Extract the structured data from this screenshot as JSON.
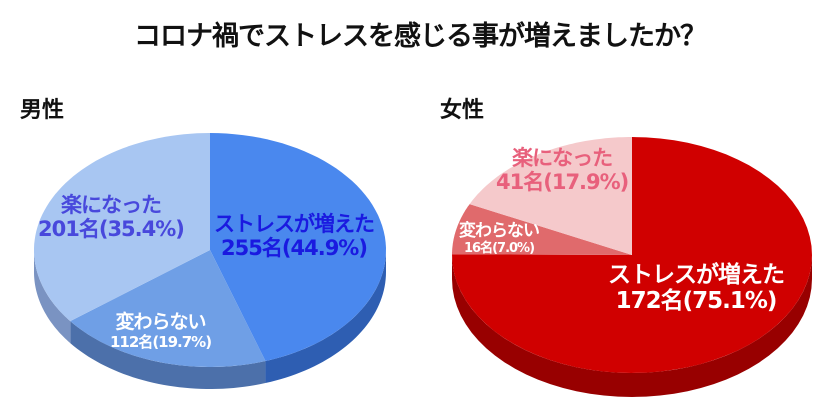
{
  "title": "コロナ禍でストレスを感じる事が増えましたか？",
  "chart_data": [
    {
      "type": "pie",
      "title": "男性",
      "slices": [
        {
          "label": "ストレスが増えた",
          "count": "255名",
          "percent": "(44.9%)",
          "value": 44.9,
          "color": "#4a88ee",
          "side": "#2e5eb2",
          "text_color": "#1a1ae0"
        },
        {
          "label": "変わらない",
          "count": "112名",
          "percent": "(19.7%)",
          "value": 19.7,
          "color": "#6f9fe6",
          "side": "#4c70aa",
          "text_color": "#ffffff"
        },
        {
          "label": "楽になった",
          "count": "201名",
          "percent": "(35.4%)",
          "value": 35.4,
          "color": "#a8c6f2",
          "side": "#7a93c2",
          "text_color": "#4848dc"
        }
      ]
    },
    {
      "type": "pie",
      "title": "女性",
      "slices": [
        {
          "label": "ストレスが増えた",
          "count": "172名",
          "percent": "(75.1%)",
          "value": 75.1,
          "color": "#d00000",
          "side": "#980000",
          "text_color": "#ffffff"
        },
        {
          "label": "変わらない",
          "count": "16名",
          "percent": "(7.0%)",
          "value": 7.0,
          "color": "#e06a6c",
          "side": "#ad4a4c",
          "text_color": "#ffffff"
        },
        {
          "label": "楽になった",
          "count": "41名",
          "percent": "(17.9%)",
          "value": 17.9,
          "color": "#f5c9cb",
          "side": "#cf9fa1",
          "text_color": "#e8607c"
        }
      ]
    }
  ]
}
